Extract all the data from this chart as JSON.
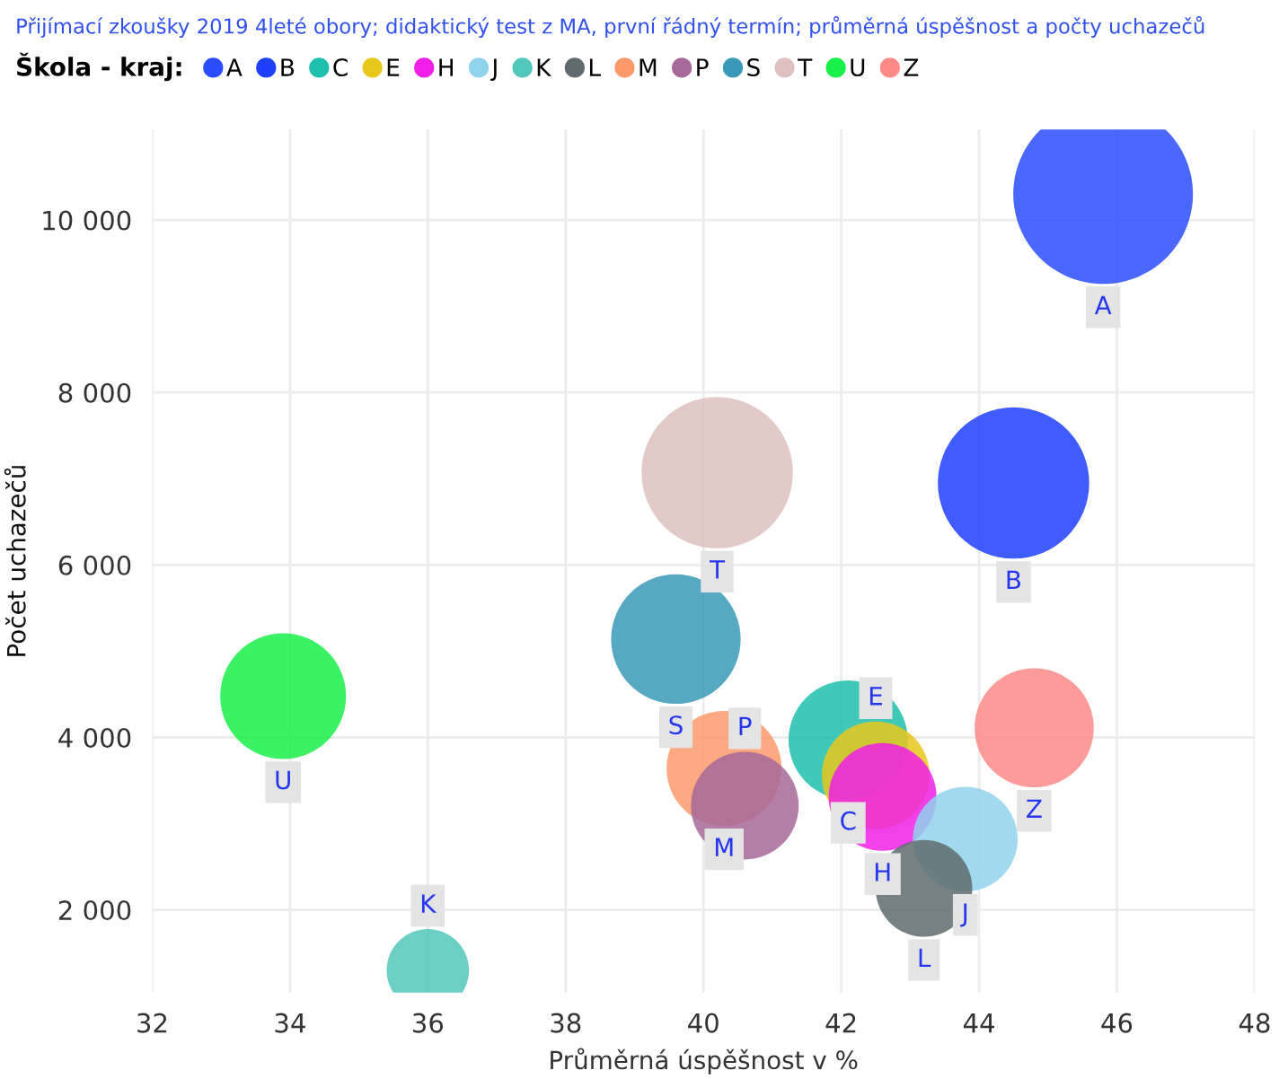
{
  "chart_data": {
    "type": "bubble",
    "title": "Přijímací zkoušky 2019 4leté obory; didaktický test z MA, první řádný termín; průměrná úspěšnost a počty uchazečů",
    "legend_title": "Škola - kraj:",
    "legend": "top left",
    "grid": true,
    "xlabel": "Průměrná úspěšnost v %",
    "ylabel": "Počet uchazečů",
    "xlim": [
      32,
      48
    ],
    "xticks": [
      32,
      34,
      36,
      38,
      40,
      42,
      44,
      46,
      48
    ],
    "ylim": [
      1040,
      11050
    ],
    "yticks": [
      {
        "value": 2000,
        "label": "2 000"
      },
      {
        "value": 4000,
        "label": "4 000"
      },
      {
        "value": 6000,
        "label": "6 000"
      },
      {
        "value": 8000,
        "label": "8 000"
      },
      {
        "value": 10000,
        "label": "10 000"
      }
    ],
    "series": [
      {
        "name": "A",
        "color": "#2a4cff",
        "x": [
          45.8
        ],
        "values": [
          10300
        ],
        "sizes": [
          1
        ]
      },
      {
        "name": "B",
        "color": "#1f3fff",
        "x": [
          44.5
        ],
        "values": [
          6950
        ],
        "sizes": [
          0.71
        ]
      },
      {
        "name": "C",
        "color": "#1fbfad",
        "x": [
          42.1
        ],
        "values": [
          3970
        ],
        "sizes": [
          0.44
        ]
      },
      {
        "name": "E",
        "color": "#e8c81c",
        "x": [
          42.5
        ],
        "values": [
          3560
        ],
        "sizes": [
          0.36
        ]
      },
      {
        "name": "H",
        "color": "#f01ee8",
        "x": [
          42.6
        ],
        "values": [
          3310
        ],
        "sizes": [
          0.36
        ]
      },
      {
        "name": "J",
        "color": "#91d3ec",
        "x": [
          43.8
        ],
        "values": [
          2820
        ],
        "sizes": [
          0.34
        ]
      },
      {
        "name": "K",
        "color": "#52c7bb",
        "x": [
          36.0
        ],
        "values": [
          1300
        ],
        "sizes": [
          0.21
        ]
      },
      {
        "name": "L",
        "color": "#5f6b6d",
        "x": [
          43.2
        ],
        "values": [
          2250
        ],
        "sizes": [
          0.29
        ]
      },
      {
        "name": "M",
        "color": "#fd9a6b",
        "x": [
          40.3
        ],
        "values": [
          3640
        ],
        "sizes": [
          0.41
        ]
      },
      {
        "name": "P",
        "color": "#a66999",
        "x": [
          40.6
        ],
        "values": [
          3210
        ],
        "sizes": [
          0.36
        ]
      },
      {
        "name": "S",
        "color": "#3a99b8",
        "x": [
          39.6
        ],
        "values": [
          5140
        ],
        "sizes": [
          0.52
        ]
      },
      {
        "name": "T",
        "color": "#dfc0c0",
        "x": [
          40.2
        ],
        "values": [
          7070
        ],
        "sizes": [
          0.71
        ]
      },
      {
        "name": "U",
        "color": "#19f04a",
        "x": [
          33.9
        ],
        "values": [
          4480
        ],
        "sizes": [
          0.49
        ]
      },
      {
        "name": "Z",
        "color": "#fd8a86",
        "x": [
          44.8
        ],
        "values": [
          4110
        ],
        "sizes": [
          0.44
        ]
      }
    ]
  }
}
